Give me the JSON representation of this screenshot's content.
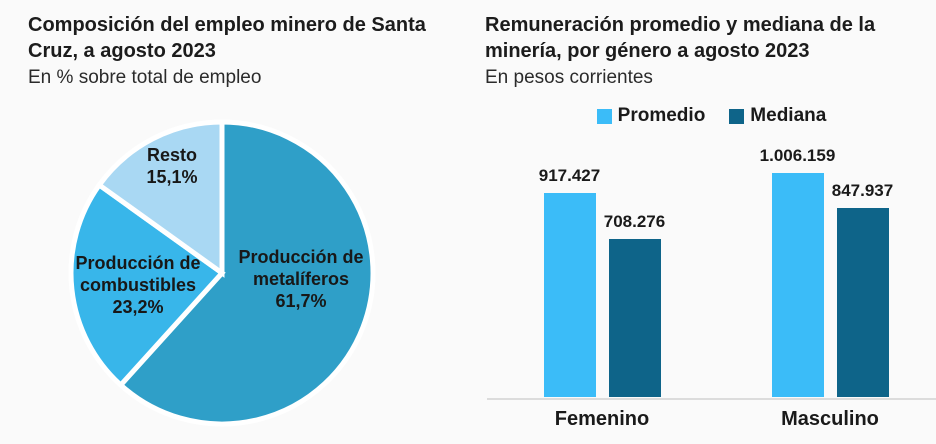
{
  "page": {
    "background": "#FAFAFA"
  },
  "left_chart": {
    "title": "Composición del empleo minero de Santa\nCruz, a agosto 2023",
    "subtitle": "En % sobre total de empleo"
  },
  "right_chart": {
    "title": "Remuneración promedio y mediana de la\nminería, por género a agosto 2023",
    "subtitle": "En pesos corrientes"
  },
  "chart_data": [
    {
      "type": "pie",
      "title": "Composición del empleo minero de Santa Cruz, a agosto 2023",
      "unit": "% sobre total de empleo",
      "start_angle_deg": 0,
      "direction": "clockwise",
      "slice_gap_color": "#FFFFFF",
      "slices": [
        {
          "label": "Producción de metalíferos",
          "value": 61.7,
          "display": "Producción de\nmetalíferos\n61,7%",
          "color": "#2F9FC8"
        },
        {
          "label": "Producción de combustibles",
          "value": 23.2,
          "display": "Producción de\ncombustibles\n23,2%",
          "color": "#38B6EA"
        },
        {
          "label": "Resto",
          "value": 15.1,
          "display": "Resto\n15,1%",
          "color": "#A9D8F3"
        }
      ]
    },
    {
      "type": "bar",
      "title": "Remuneración promedio y mediana de la minería, por género a agosto 2023",
      "unit": "pesos corrientes",
      "categories": [
        "Femenino",
        "Masculino"
      ],
      "series": [
        {
          "name": "Promedio",
          "color": "#3BBCF8",
          "values": [
            917427,
            1006159
          ],
          "display_values": [
            "917.427",
            "1.006.159"
          ]
        },
        {
          "name": "Mediana",
          "color": "#0E6489",
          "values": [
            708276,
            847937
          ],
          "display_values": [
            "708.276",
            "847.937"
          ]
        }
      ],
      "ylim": [
        0,
        1050000
      ],
      "grid": false,
      "legend_position": "top"
    }
  ]
}
